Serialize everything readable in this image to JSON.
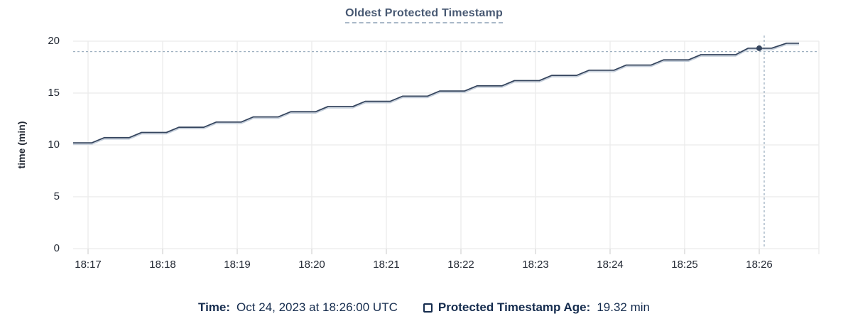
{
  "title": "Oldest Protected Timestamp",
  "legend": {
    "time_label": "Time:",
    "time_value": "Oct 24, 2023 at 18:26:00 UTC",
    "series_label": "Protected Timestamp Age:",
    "series_value": "19.32 min"
  },
  "colors": {
    "series_line": "#35455e",
    "series_shadow": "#c3cdda",
    "crosshair": "#9fb1c1",
    "gridline": "#ededed",
    "tick_stub": "#e4e4e4",
    "title_text": "#475872",
    "legend_text": "#152c4e"
  },
  "chart_data": {
    "type": "line",
    "title": "Oldest Protected Timestamp",
    "xlabel": "",
    "ylabel": "time (min)",
    "ylim": [
      0,
      20
    ],
    "y_ticks": [
      0,
      5,
      10,
      15,
      20
    ],
    "x_ticks": [
      "18:17",
      "18:18",
      "18:19",
      "18:20",
      "18:21",
      "18:22",
      "18:23",
      "18:24",
      "18:25",
      "18:26"
    ],
    "x_domain": [
      "18:16:48",
      "18:26:48"
    ],
    "grid": true,
    "legend_position": "bottom",
    "series": [
      {
        "name": "Protected Timestamp Age",
        "unit": "min",
        "color": "#35455e",
        "points": [
          [
            "18:16:48",
            10.2
          ],
          [
            "18:17:03",
            10.2
          ],
          [
            "18:17:13",
            10.7
          ],
          [
            "18:17:33",
            10.7
          ],
          [
            "18:17:43",
            11.2
          ],
          [
            "18:18:03",
            11.2
          ],
          [
            "18:18:13",
            11.7
          ],
          [
            "18:18:33",
            11.7
          ],
          [
            "18:18:43",
            12.2
          ],
          [
            "18:19:03",
            12.2
          ],
          [
            "18:19:13",
            12.7
          ],
          [
            "18:19:33",
            12.7
          ],
          [
            "18:19:43",
            13.2
          ],
          [
            "18:20:03",
            13.2
          ],
          [
            "18:20:13",
            13.7
          ],
          [
            "18:20:33",
            13.7
          ],
          [
            "18:20:43",
            14.2
          ],
          [
            "18:21:03",
            14.2
          ],
          [
            "18:21:13",
            14.7
          ],
          [
            "18:21:33",
            14.7
          ],
          [
            "18:21:43",
            15.2
          ],
          [
            "18:22:03",
            15.2
          ],
          [
            "18:22:13",
            15.7
          ],
          [
            "18:22:33",
            15.7
          ],
          [
            "18:22:43",
            16.2
          ],
          [
            "18:23:03",
            16.2
          ],
          [
            "18:23:13",
            16.7
          ],
          [
            "18:23:33",
            16.7
          ],
          [
            "18:23:43",
            17.2
          ],
          [
            "18:24:03",
            17.2
          ],
          [
            "18:24:13",
            17.7
          ],
          [
            "18:24:33",
            17.7
          ],
          [
            "18:24:43",
            18.2
          ],
          [
            "18:25:03",
            18.2
          ],
          [
            "18:25:13",
            18.7
          ],
          [
            "18:25:41",
            18.7
          ],
          [
            "18:25:51",
            19.32
          ],
          [
            "18:26:10",
            19.32
          ],
          [
            "18:26:22",
            19.8
          ],
          [
            "18:26:32",
            19.8
          ]
        ]
      }
    ],
    "hover": {
      "time": "18:26:00",
      "value": 19.32,
      "crosshair_time": "18:26:04",
      "crosshair_value": 19.0
    }
  }
}
